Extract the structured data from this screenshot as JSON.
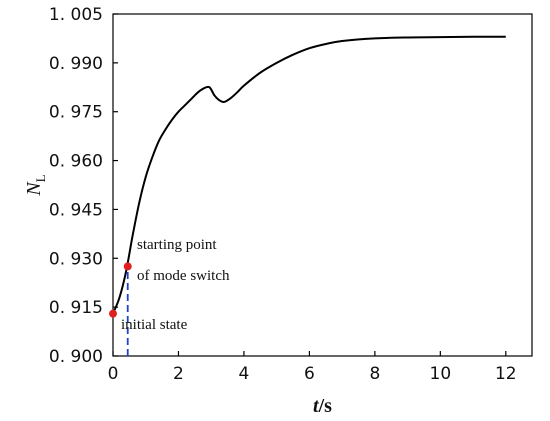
{
  "chart_data": {
    "type": "line",
    "title": "",
    "xlabel": {
      "italic": "t",
      "rest": "/s"
    },
    "ylabel": {
      "main": "N",
      "sub": "L"
    },
    "xlim": [
      0,
      12.8
    ],
    "ylim": [
      0.9,
      1.005
    ],
    "x_ticks": [
      0,
      2,
      4,
      6,
      8,
      10,
      12
    ],
    "x_tick_labels": [
      "0",
      "2",
      "4",
      "6",
      "8",
      "10",
      "12"
    ],
    "y_ticks": [
      0.9,
      0.915,
      0.93,
      0.945,
      0.96,
      0.975,
      0.99,
      1.005
    ],
    "y_tick_labels": [
      "0. 900",
      "0. 915",
      "0. 930",
      "0. 945",
      "0. 960",
      "0. 975",
      "0. 990",
      "1. 005"
    ],
    "grid": false,
    "series": [
      {
        "color": "#000000",
        "x": [
          0,
          0.2,
          0.4,
          0.6,
          0.8,
          1.0,
          1.2,
          1.4,
          1.6,
          1.8,
          2.0,
          2.2,
          2.4,
          2.6,
          2.8,
          2.95,
          3.1,
          3.25,
          3.4,
          3.6,
          3.8,
          4.0,
          4.5,
          5.0,
          5.5,
          6.0,
          6.5,
          7.0,
          8.0,
          9.0,
          10.0,
          11.0,
          12.0
        ],
        "y": [
          0.913,
          0.918,
          0.926,
          0.937,
          0.947,
          0.955,
          0.961,
          0.966,
          0.9695,
          0.9725,
          0.975,
          0.977,
          0.979,
          0.981,
          0.9823,
          0.9825,
          0.98,
          0.9785,
          0.978,
          0.9792,
          0.981,
          0.983,
          0.987,
          0.99,
          0.9925,
          0.9945,
          0.9958,
          0.9967,
          0.9975,
          0.9978,
          0.9979,
          0.998,
          0.998
        ]
      }
    ],
    "markers": [
      {
        "x": 0.0,
        "y": 0.913,
        "color": "#e02020"
      },
      {
        "x": 0.45,
        "y": 0.9275,
        "color": "#e02020"
      }
    ],
    "vline": {
      "x": 0.45,
      "y0": 0.9,
      "y1": 0.9275,
      "color": "#1f3fd0"
    },
    "annotations": [
      {
        "id": "start",
        "lines": [
          "starting point",
          "of mode switch"
        ]
      },
      {
        "id": "initial",
        "lines": [
          "initial state"
        ]
      }
    ]
  }
}
